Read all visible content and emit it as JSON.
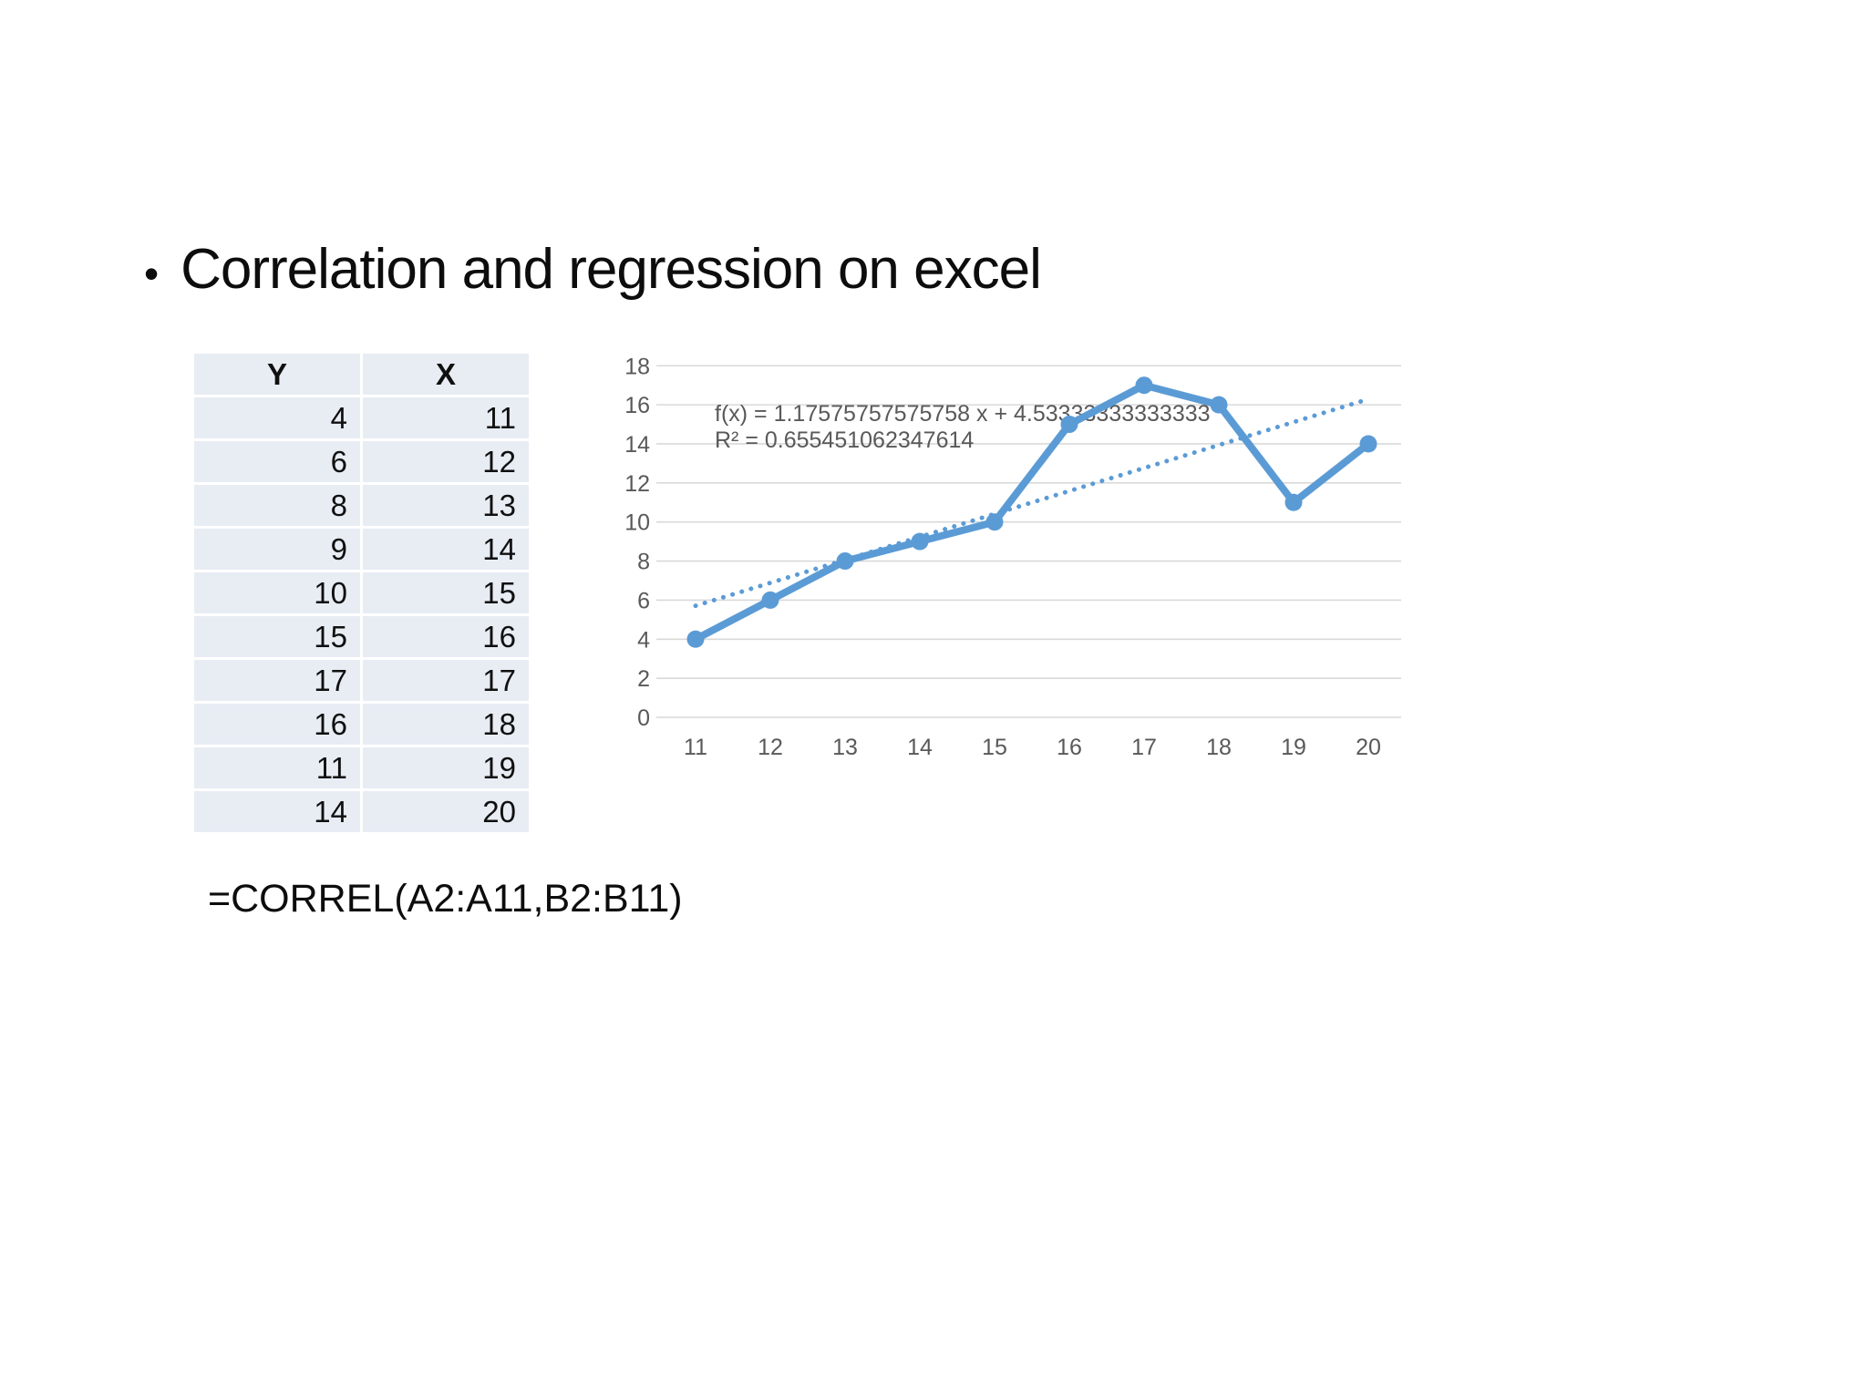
{
  "slide": {
    "bullet_glyph": "•",
    "title": "Correlation and regression on excel",
    "formula": "=CORREL(A2:A11,B2:B11)"
  },
  "table": {
    "headers": [
      "Y",
      "X"
    ],
    "rows": [
      [
        "4",
        "11"
      ],
      [
        "6",
        "12"
      ],
      [
        "8",
        "13"
      ],
      [
        "9",
        "14"
      ],
      [
        "10",
        "15"
      ],
      [
        "15",
        "16"
      ],
      [
        "17",
        "17"
      ],
      [
        "16",
        "18"
      ],
      [
        "11",
        "19"
      ],
      [
        "14",
        "20"
      ]
    ]
  },
  "chart_data": {
    "type": "line",
    "title": "",
    "xlabel": "",
    "ylabel": "",
    "x_categories": [
      "11",
      "12",
      "13",
      "14",
      "15",
      "16",
      "17",
      "18",
      "19",
      "20"
    ],
    "series": [
      {
        "name": "Y",
        "values": [
          4,
          6,
          8,
          9,
          10,
          15,
          17,
          16,
          11,
          14
        ]
      }
    ],
    "trendline": {
      "type": "linear",
      "slope": 1.17575757575758,
      "intercept": 4.53333333333333,
      "fit_domain": "point index 1-10",
      "style": "dotted",
      "equation_label": "f(x) = 1.17575757575758 x + 4.53333333333333",
      "r_squared_label": "R² = 0.655451062347614"
    },
    "ylim": [
      0,
      18
    ],
    "ytick_step": 2,
    "grid": "horizontal",
    "legend": "none",
    "colors": {
      "series": "#5b9bd5",
      "trendline": "#5b9bd5",
      "gridline": "#d9d9d9",
      "axis_text": "#595959",
      "annotation_text": "#595959"
    }
  }
}
